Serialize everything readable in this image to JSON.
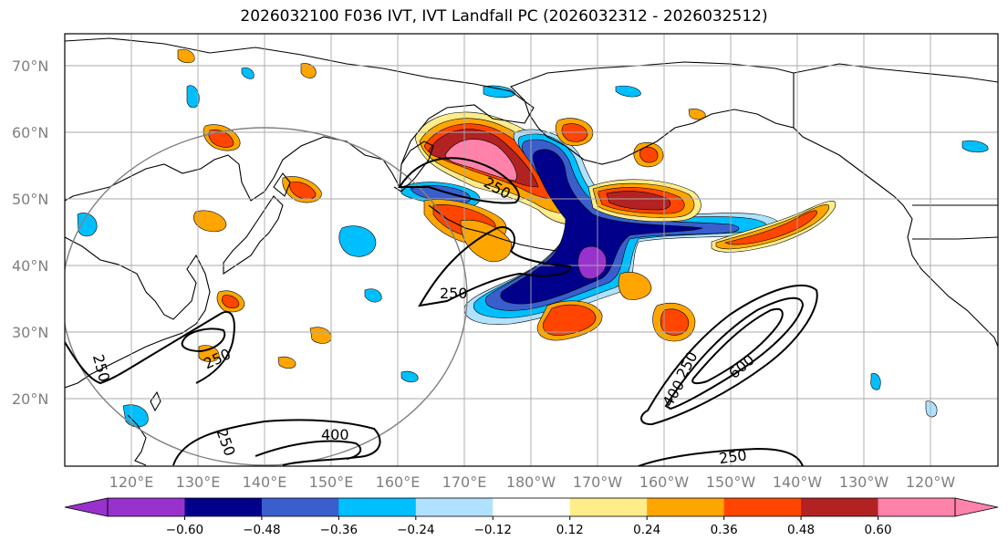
{
  "title": "2026032100 F036 IVT, IVT Landfall PC (2026032312 - 2026032512)",
  "latitude_labels": [
    "70°N",
    "60°N",
    "50°N",
    "40°N",
    "30°N",
    "20°N"
  ],
  "longitude_labels": [
    "120°E",
    "130°E",
    "140°E",
    "150°E",
    "160°E",
    "170°E",
    "180°W",
    "170°W",
    "160°W",
    "150°W",
    "140°W",
    "130°W",
    "120°W"
  ],
  "contour_labels": [
    "250",
    "250",
    "250",
    "250",
    "250",
    "400",
    "250",
    "400",
    "600",
    "250"
  ],
  "colorbar": {
    "tick_labels": [
      "−0.60",
      "−0.48",
      "−0.36",
      "−0.24",
      "−0.12",
      "0.12",
      "0.24",
      "0.36",
      "0.48",
      "0.60"
    ],
    "colors": [
      "#9932cc",
      "#00008b",
      "#3a5fcd",
      "#00bfff",
      "#b0e2ff",
      "#ffffff",
      "#ffec8b",
      "#ffa500",
      "#ff4500",
      "#b22222",
      "#ff82ab"
    ]
  },
  "palette": {
    "purple": "#9932cc",
    "navy": "#00008b",
    "blue": "#3a5fcd",
    "deepskyblue": "#00bfff",
    "lightblue": "#b0e2ff",
    "khaki": "#ffec8b",
    "orange": "#ffa500",
    "orangered": "#ff4500",
    "firebrick": "#b22222",
    "pink": "#ff82ab",
    "gray": "#808080"
  }
}
